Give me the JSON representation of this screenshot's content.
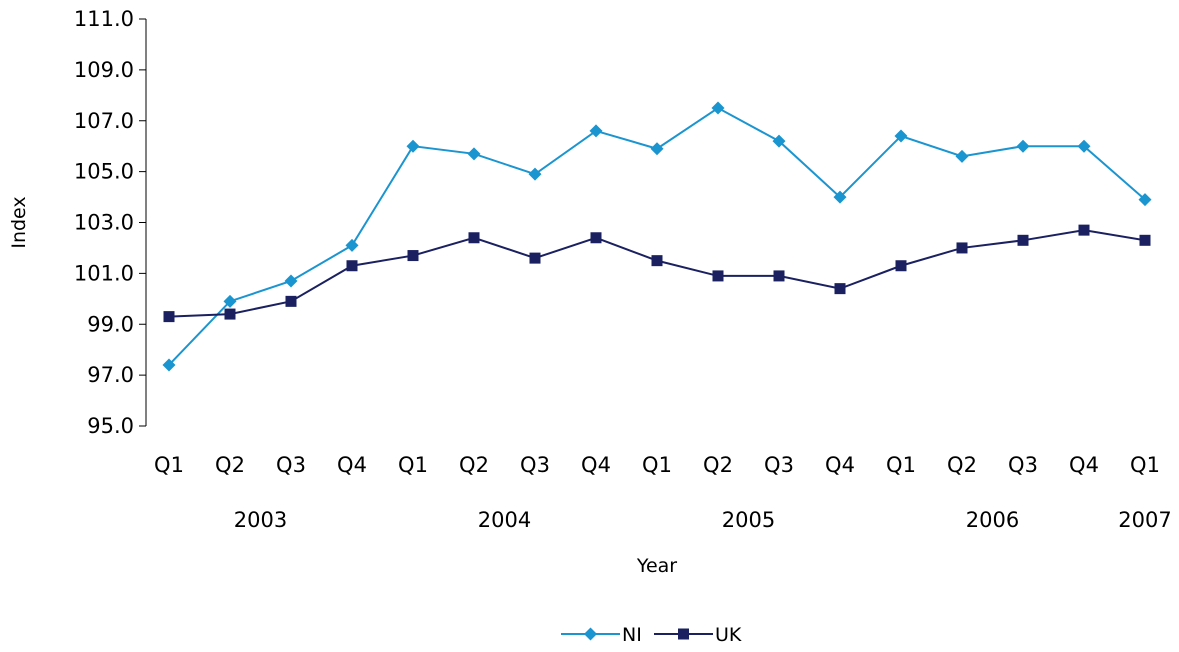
{
  "chart_data": {
    "type": "line",
    "categories": [
      "Q1",
      "Q2",
      "Q3",
      "Q4",
      "Q1",
      "Q2",
      "Q3",
      "Q4",
      "Q1",
      "Q2",
      "Q3",
      "Q4",
      "Q1",
      "Q2",
      "Q3",
      "Q4",
      "Q1"
    ],
    "year_labels": [
      {
        "label": "2003",
        "index": 1.5
      },
      {
        "label": "2004",
        "index": 5.5
      },
      {
        "label": "2005",
        "index": 9.5
      },
      {
        "label": "2006",
        "index": 13.5
      },
      {
        "label": "2007",
        "index": 16
      }
    ],
    "series": [
      {
        "name": "NI",
        "color": "#1a95d0",
        "marker": "diamond",
        "values": [
          97.4,
          99.9,
          100.7,
          102.1,
          106.0,
          105.7,
          104.9,
          106.6,
          105.9,
          107.5,
          106.2,
          104.0,
          106.4,
          105.6,
          106.0,
          106.0,
          103.9
        ]
      },
      {
        "name": "UK",
        "color": "#1a2060",
        "marker": "square",
        "values": [
          99.3,
          99.4,
          99.9,
          101.3,
          101.7,
          102.4,
          101.6,
          102.4,
          101.5,
          100.9,
          100.9,
          100.4,
          101.3,
          102.0,
          102.3,
          102.7,
          102.3
        ]
      }
    ],
    "title": "",
    "xlabel": "Year",
    "ylabel": "Index",
    "ylim": [
      95.0,
      111.0
    ],
    "yticks": [
      "95.0",
      "97.0",
      "99.0",
      "101.0",
      "103.0",
      "105.0",
      "107.0",
      "109.0",
      "111.0"
    ],
    "grid": false,
    "legend_position": "bottom-center"
  }
}
